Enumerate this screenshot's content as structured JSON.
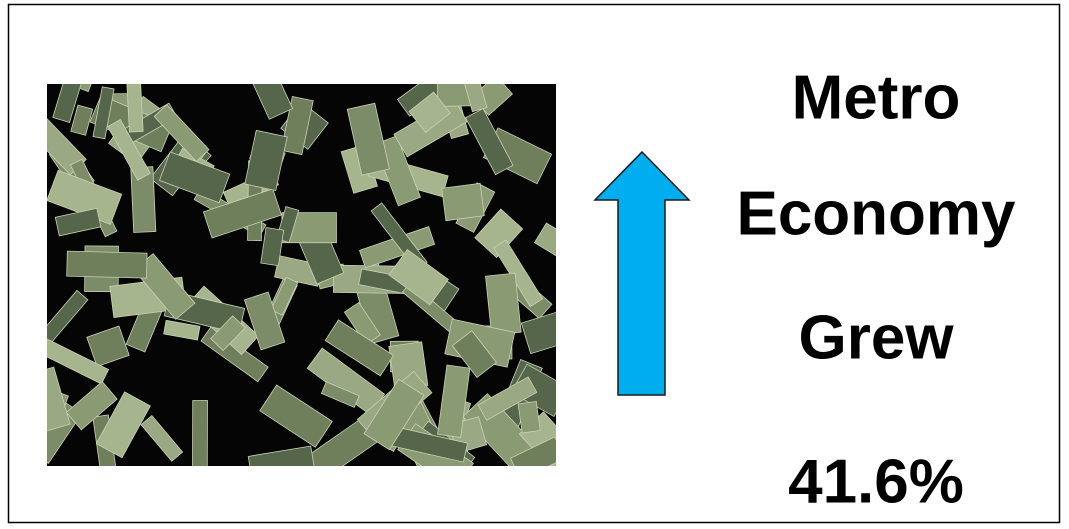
{
  "headline": {
    "lines": [
      "Metro",
      "Economy",
      "Grew",
      "41.6%"
    ]
  }
}
